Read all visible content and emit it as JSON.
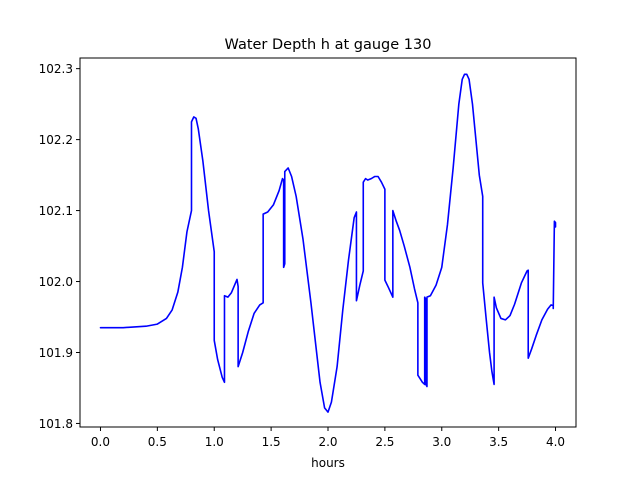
{
  "chart_data": {
    "type": "line",
    "title": "Water Depth h at gauge 130",
    "xlabel": "hours",
    "ylabel": "",
    "xlim": [
      -0.18,
      4.18
    ],
    "ylim": [
      101.795,
      102.315
    ],
    "xticks": [
      0.0,
      0.5,
      1.0,
      1.5,
      2.0,
      2.5,
      3.0,
      3.5,
      4.0
    ],
    "xtick_labels": [
      "0.0",
      "0.5",
      "1.0",
      "1.5",
      "2.0",
      "2.5",
      "3.0",
      "3.5",
      "4.0"
    ],
    "yticks": [
      101.8,
      101.9,
      102.0,
      102.1,
      102.2,
      102.3
    ],
    "ytick_labels": [
      "101.8",
      "101.9",
      "102.0",
      "102.1",
      "102.2",
      "102.3"
    ],
    "grid": false,
    "legend": "none",
    "series": [
      {
        "color": "#0000ff",
        "x": [
          0.0,
          0.2,
          0.4,
          0.5,
          0.58,
          0.63,
          0.68,
          0.72,
          0.76,
          0.8,
          0.8,
          0.82,
          0.84,
          0.86,
          0.9,
          0.95,
          1.0,
          1.0,
          1.03,
          1.07,
          1.09,
          1.09,
          1.12,
          1.15,
          1.2,
          1.21,
          1.21,
          1.25,
          1.3,
          1.35,
          1.4,
          1.43,
          1.43,
          1.47,
          1.52,
          1.57,
          1.6,
          1.61,
          1.61,
          1.62,
          1.62,
          1.65,
          1.68,
          1.72,
          1.78,
          1.85,
          1.9,
          1.93,
          1.97,
          2.0,
          2.03,
          2.08,
          2.13,
          2.18,
          2.23,
          2.25,
          2.25,
          2.28,
          2.31,
          2.31,
          2.33,
          2.35,
          2.38,
          2.41,
          2.44,
          2.47,
          2.5,
          2.5,
          2.53,
          2.57,
          2.57,
          2.6,
          2.63,
          2.67,
          2.72,
          2.76,
          2.79,
          2.79,
          2.83,
          2.85,
          2.85,
          2.86,
          2.86,
          2.87,
          2.87,
          2.9,
          2.95,
          3.0,
          3.05,
          3.1,
          3.15,
          3.18,
          3.2,
          3.22,
          3.24,
          3.27,
          3.3,
          3.33,
          3.36,
          3.36,
          3.39,
          3.42,
          3.44,
          3.46,
          3.46,
          3.48,
          3.52,
          3.56,
          3.6,
          3.64,
          3.7,
          3.75,
          3.76,
          3.76,
          3.79,
          3.83,
          3.88,
          3.93,
          3.96,
          3.98,
          3.98,
          3.99,
          4.0,
          4.0
        ],
        "y": [
          101.935,
          101.935,
          101.937,
          101.94,
          101.948,
          101.96,
          101.985,
          102.02,
          102.07,
          102.1,
          102.225,
          102.232,
          102.23,
          102.215,
          102.17,
          102.1,
          102.042,
          101.917,
          101.89,
          101.865,
          101.858,
          101.98,
          101.978,
          101.984,
          102.003,
          101.993,
          101.88,
          101.9,
          101.93,
          101.955,
          101.967,
          101.97,
          102.095,
          102.098,
          102.108,
          102.128,
          102.145,
          102.143,
          102.02,
          102.025,
          102.155,
          102.16,
          102.148,
          102.12,
          102.06,
          101.97,
          101.9,
          101.858,
          101.822,
          101.816,
          101.83,
          101.88,
          101.96,
          102.03,
          102.09,
          102.098,
          101.973,
          101.995,
          102.015,
          102.14,
          102.145,
          102.143,
          102.145,
          102.148,
          102.148,
          102.14,
          102.13,
          102.002,
          101.992,
          101.978,
          102.1,
          102.085,
          102.072,
          102.05,
          102.02,
          101.99,
          101.97,
          101.868,
          101.858,
          101.855,
          101.978,
          101.975,
          101.855,
          101.852,
          101.978,
          101.98,
          101.995,
          102.02,
          102.08,
          102.16,
          102.25,
          102.285,
          102.292,
          102.292,
          102.285,
          102.25,
          102.2,
          102.15,
          102.12,
          101.998,
          101.948,
          101.9,
          101.874,
          101.855,
          101.978,
          101.963,
          101.948,
          101.946,
          101.952,
          101.968,
          101.998,
          102.015,
          102.016,
          101.892,
          101.905,
          101.924,
          101.946,
          101.961,
          101.967,
          101.966,
          101.962,
          102.085,
          102.083,
          102.077
        ]
      }
    ]
  }
}
